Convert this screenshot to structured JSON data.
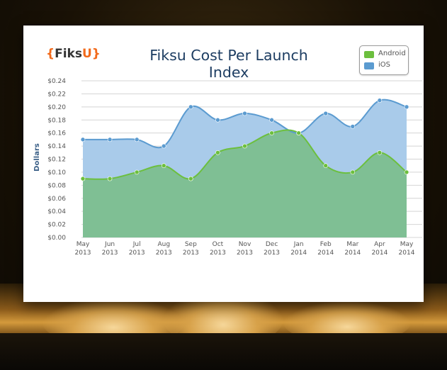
{
  "logo": {
    "open": "{",
    "text": "Fiks",
    "u": "U",
    "close": "}"
  },
  "chart_data": {
    "type": "area",
    "title": "Fiksu Cost Per Launch Index",
    "ylabel": "Dollars",
    "xlabel": "",
    "categories": [
      [
        "May",
        "2013"
      ],
      [
        "Jun",
        "2013"
      ],
      [
        "Jul",
        "2013"
      ],
      [
        "Aug",
        "2013"
      ],
      [
        "Sep",
        "2013"
      ],
      [
        "Oct",
        "2013"
      ],
      [
        "Nov",
        "2013"
      ],
      [
        "Dec",
        "2013"
      ],
      [
        "Jan",
        "2014"
      ],
      [
        "Feb",
        "2014"
      ],
      [
        "Mar",
        "2014"
      ],
      [
        "Apr",
        "2014"
      ],
      [
        "May",
        "2014"
      ]
    ],
    "ylim": [
      0,
      0.24
    ],
    "yticks": [
      "$0.00",
      "$0.02",
      "$0.04",
      "$0.06",
      "$0.08",
      "$0.10",
      "$0.12",
      "$0.14",
      "$0.16",
      "$0.18",
      "$0.20",
      "$0.22",
      "$0.24"
    ],
    "grid": true,
    "legend_position": "top-right",
    "series": [
      {
        "name": "iOS",
        "color": "#5b9bd0",
        "fill": "#a9cbea",
        "values": [
          0.15,
          0.15,
          0.15,
          0.14,
          0.2,
          0.18,
          0.19,
          0.18,
          0.16,
          0.19,
          0.17,
          0.21,
          0.2
        ]
      },
      {
        "name": "Android",
        "color": "#6cbf3e",
        "fill": "#7fbf94",
        "values": [
          0.09,
          0.09,
          0.1,
          0.11,
          0.09,
          0.13,
          0.14,
          0.16,
          0.16,
          0.11,
          0.1,
          0.13,
          0.1
        ]
      }
    ]
  }
}
